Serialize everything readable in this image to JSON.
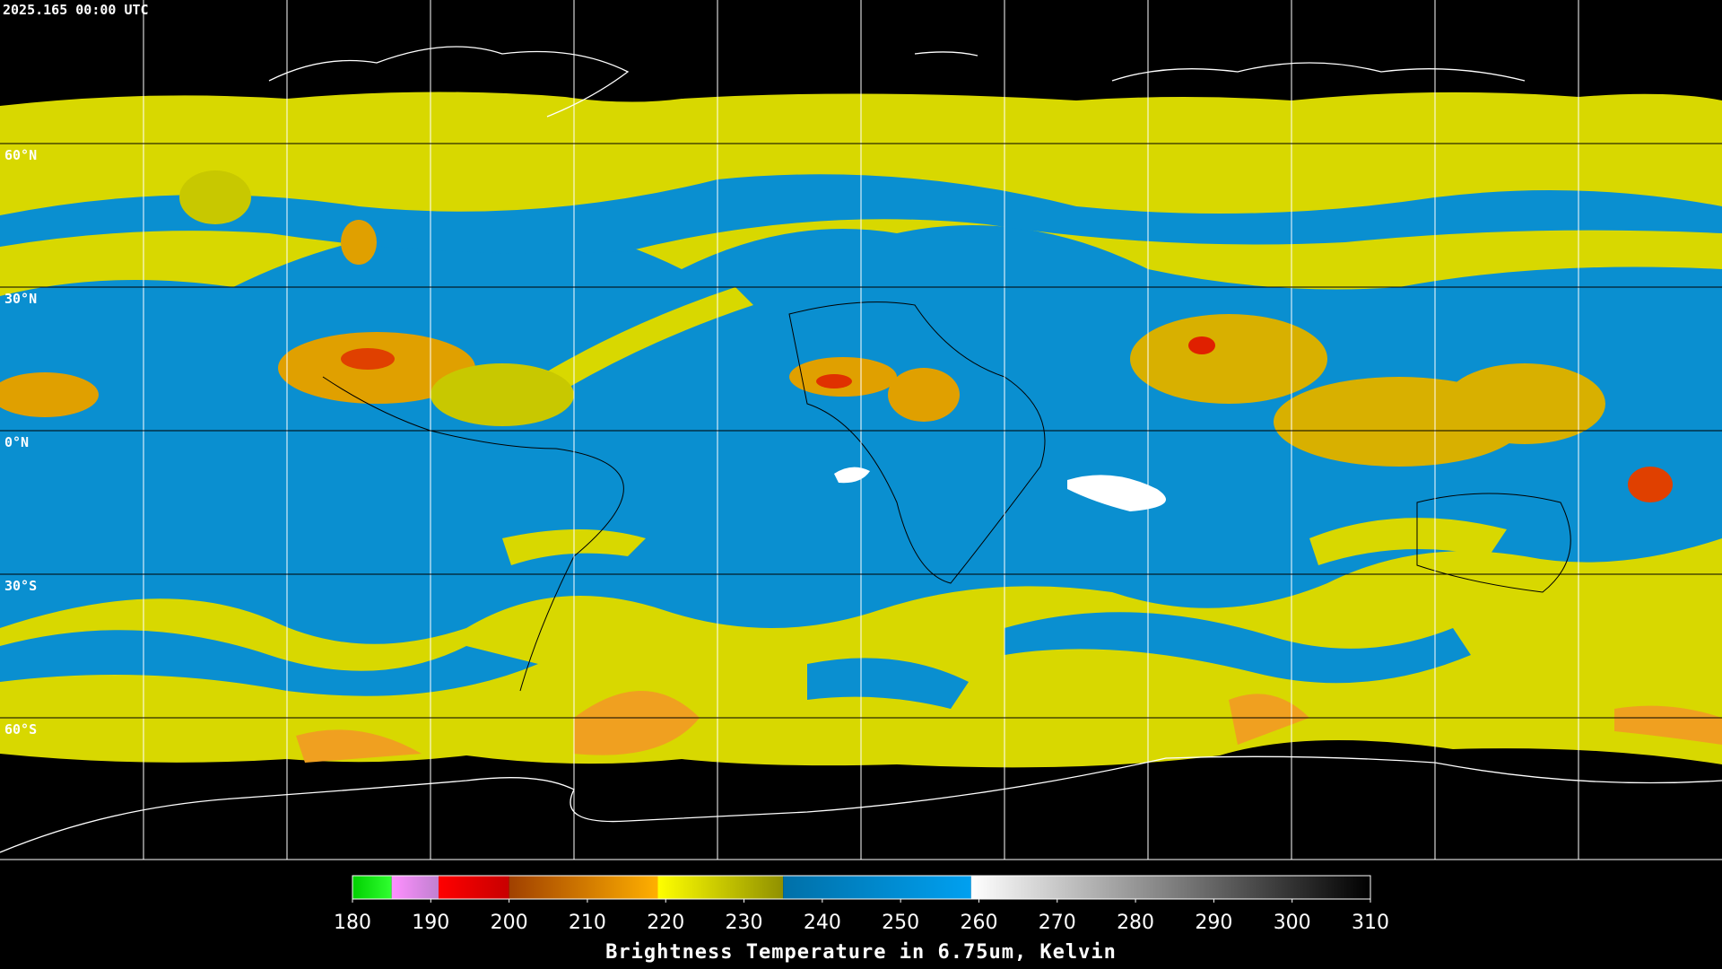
{
  "header": {
    "title": "2025.165 00:00 UTC"
  },
  "map": {
    "latitude_labels": [
      "60°N",
      "30°N",
      "0°N",
      "30°S",
      "60°S"
    ]
  },
  "colorbar": {
    "lim": [
      180,
      310
    ],
    "ticks": [
      180,
      190,
      200,
      210,
      220,
      230,
      240,
      250,
      260,
      270,
      280,
      290,
      300,
      310
    ],
    "segments": [
      {
        "from": 180,
        "to": 185,
        "colors": [
          "#00d000",
          "#30ff30"
        ]
      },
      {
        "from": 185,
        "to": 191,
        "colors": [
          "#ff90ff",
          "#c080d0"
        ]
      },
      {
        "from": 191,
        "to": 200,
        "colors": [
          "#ff0000",
          "#c80000"
        ]
      },
      {
        "from": 200,
        "to": 219,
        "colors": [
          "#a04000",
          "#ffb000"
        ]
      },
      {
        "from": 219,
        "to": 235,
        "colors": [
          "#ffff00",
          "#909000"
        ]
      },
      {
        "from": 235,
        "to": 259,
        "colors": [
          "#0070a8",
          "#00a0f0"
        ]
      },
      {
        "from": 259,
        "to": 310,
        "colors": [
          "#ffffff",
          "#000000"
        ]
      }
    ],
    "label": "Brightness Temperature in 6.75um, Kelvin"
  }
}
